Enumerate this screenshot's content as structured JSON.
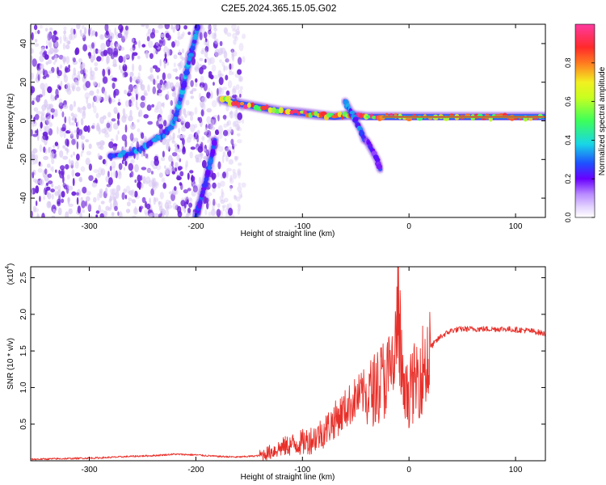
{
  "figure_title": "C2E5.2024.365.15.05.G02",
  "colors": {
    "red_line": "#e8302a",
    "purple_dense": "#6a1fd8",
    "purple_light": "#d7c6f2",
    "blue": "#1e50ff",
    "cyan": "#18d6e6",
    "green": "#3cff5a",
    "yellow": "#f2f020",
    "red": "#ff2a2a"
  },
  "chart_data": [
    {
      "type": "heatmap",
      "title": "C2E5.2024.365.15.05.G02",
      "xlabel": "Height of straight line (km)",
      "ylabel": "Frequency (Hz)",
      "xlim": [
        -355,
        128
      ],
      "ylim": [
        -50,
        50
      ],
      "x_ticks": [
        -300,
        -200,
        -100,
        0,
        100
      ],
      "y_ticks": [
        -40,
        -20,
        0,
        20,
        40
      ],
      "colorbar": {
        "label": "Normalized spectral amplitude",
        "range": [
          0.0,
          1.0
        ],
        "ticks": [
          0.0,
          0.2,
          0.4,
          0.6,
          0.8
        ],
        "tick_labels": [
          "0.0",
          "0.2",
          "0.4",
          "0.6",
          "0.8"
        ],
        "colormap": [
          "#ffffff",
          "#c9a0ff",
          "#6a00ff",
          "#1e50ff",
          "#18d6e6",
          "#3cff5a",
          "#f2f020",
          "#ff7a20",
          "#ff2a2a",
          "#ff3aa0"
        ]
      },
      "noise_band": {
        "x_range": [
          -355,
          -155
        ],
        "density": "high, fading after -180"
      },
      "features": [
        {
          "name": "low-frequency track",
          "points": [
            [
              -280,
              -18
            ],
            [
              -262,
              -17
            ],
            [
              -250,
              -14
            ],
            [
              -240,
              -10
            ],
            [
              -230,
              -7
            ],
            [
              -222,
              -2
            ],
            [
              -218,
              4
            ],
            [
              -214,
              12
            ],
            [
              -210,
              22
            ],
            [
              -206,
              32
            ],
            [
              -202,
              40
            ],
            [
              -198,
              49
            ]
          ],
          "amplitude": 0.4
        },
        {
          "name": "negative branch",
          "points": [
            [
              -200,
              -50
            ],
            [
              -195,
              -40
            ],
            [
              -190,
              -30
            ],
            [
              -186,
              -20
            ],
            [
              -182,
              -10
            ]
          ],
          "amplitude": 0.35
        },
        {
          "name": "main line",
          "points": [
            [
              -175,
              11
            ],
            [
              -160,
              9
            ],
            [
              -140,
              7
            ],
            [
              -120,
              5
            ],
            [
              -100,
              4
            ],
            [
              -85,
              3
            ],
            [
              -70,
              2
            ],
            [
              -55,
              3
            ],
            [
              -40,
              2
            ],
            [
              -25,
              2
            ],
            [
              0,
              2
            ],
            [
              30,
              2
            ],
            [
              60,
              2
            ],
            [
              80,
              2
            ],
            [
              100,
              2
            ],
            [
              128,
              2
            ]
          ],
          "amplitude": 0.9
        },
        {
          "name": "descending chirp 1",
          "points": [
            [
              -60,
              10
            ],
            [
              -55,
              5
            ],
            [
              -50,
              0
            ],
            [
              -45,
              -5
            ],
            [
              -42,
              -10
            ]
          ],
          "amplitude": 0.4
        },
        {
          "name": "descending chirp 2",
          "points": [
            [
              -40,
              -10
            ],
            [
              -35,
              -15
            ],
            [
              -30,
              -20
            ],
            [
              -27,
              -25
            ]
          ],
          "amplitude": 0.25
        }
      ]
    },
    {
      "type": "line",
      "xlabel": "Height of straight line (km)",
      "ylabel": "SNR (10 * v/v)",
      "multiplier_label": "(x10",
      "multiplier_exponent": "4",
      "multiplier_suffix": ")",
      "xlim": [
        -355,
        128
      ],
      "ylim": [
        0.0,
        2.65
      ],
      "x_ticks": [
        -300,
        -200,
        -100,
        0,
        100
      ],
      "y_ticks": [
        0.5,
        1.0,
        1.5,
        2.0,
        2.5
      ],
      "y_tick_labels": [
        "0.5",
        "1.0",
        "1.5",
        "2.0",
        "2.5"
      ],
      "series": [
        {
          "color": "#e8302a",
          "points": [
            [
              -355,
              0.02
            ],
            [
              -320,
              0.03
            ],
            [
              -290,
              0.04
            ],
            [
              -260,
              0.06
            ],
            [
              -240,
              0.07
            ],
            [
              -220,
              0.09
            ],
            [
              -200,
              0.08
            ],
            [
              -180,
              0.06
            ],
            [
              -160,
              0.05
            ],
            [
              -140,
              0.07
            ],
            [
              -130,
              0.12
            ],
            [
              -120,
              0.18
            ],
            [
              -110,
              0.22
            ],
            [
              -100,
              0.25
            ],
            [
              -90,
              0.3
            ],
            [
              -80,
              0.4
            ],
            [
              -70,
              0.55
            ],
            [
              -60,
              0.7
            ],
            [
              -50,
              0.85
            ],
            [
              -40,
              0.95
            ],
            [
              -30,
              1.1
            ],
            [
              -25,
              1.2
            ],
            [
              -20,
              1.25
            ],
            [
              -15,
              1.35
            ],
            [
              -12,
              1.7
            ],
            [
              -10,
              2.65
            ],
            [
              -8,
              1.6
            ],
            [
              -5,
              0.9
            ],
            [
              0,
              1.0
            ],
            [
              10,
              1.3
            ],
            [
              20,
              1.55
            ],
            [
              30,
              1.7
            ],
            [
              40,
              1.78
            ],
            [
              50,
              1.8
            ],
            [
              70,
              1.8
            ],
            [
              90,
              1.8
            ],
            [
              100,
              1.79
            ],
            [
              110,
              1.78
            ],
            [
              120,
              1.76
            ],
            [
              128,
              1.73
            ]
          ]
        }
      ]
    }
  ]
}
